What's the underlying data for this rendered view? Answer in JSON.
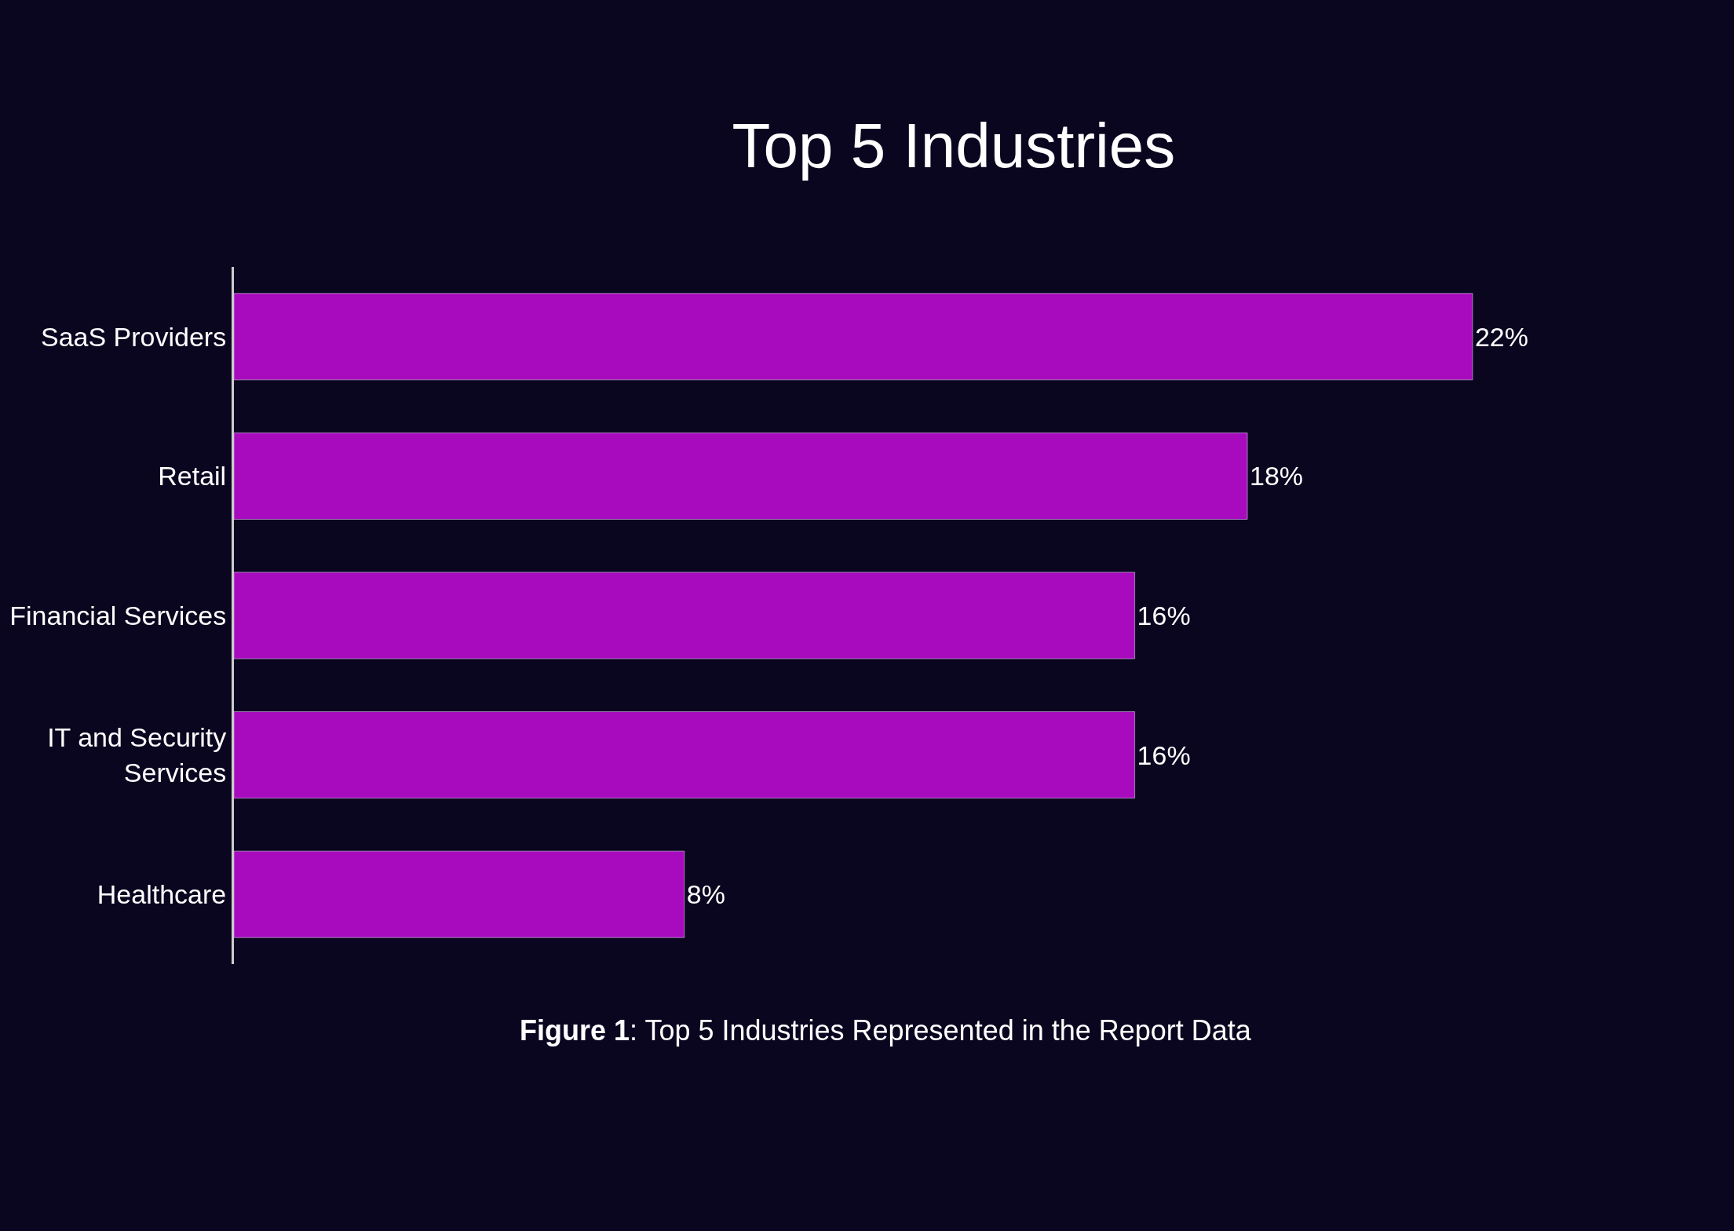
{
  "chart_data": {
    "type": "bar",
    "orientation": "horizontal",
    "title": "Top 5 Industries",
    "categories": [
      "SaaS Providers",
      "Retail",
      "Financial Services",
      "IT and Security Services",
      "Healthcare"
    ],
    "values": [
      22,
      18,
      16,
      16,
      8
    ],
    "value_labels": [
      "22%",
      "18%",
      "16%",
      "16%",
      "8%"
    ],
    "color": "#a80bbd",
    "annotations": [
      "Figure 1: Top 5 Industries Represented in the Report Data"
    ]
  }
}
